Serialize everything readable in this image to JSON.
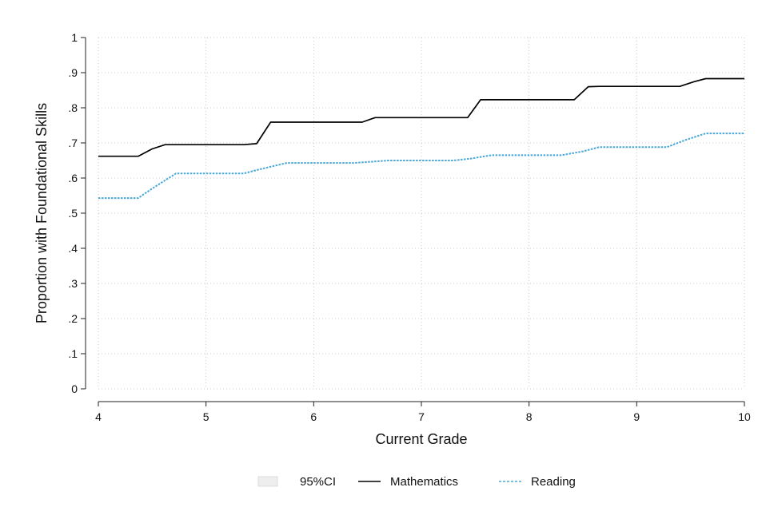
{
  "chart_data": {
    "type": "line",
    "title": "",
    "xlabel": "Current Grade",
    "ylabel": "Proportion with Foundational Skills",
    "xlim": [
      4,
      10
    ],
    "ylim": [
      0,
      1
    ],
    "x_ticks": [
      "4",
      "5",
      "6",
      "7",
      "8",
      "9",
      "10"
    ],
    "y_ticks": [
      "0",
      ".1",
      ".2",
      ".3",
      ".4",
      ".5",
      ".6",
      ".7",
      ".8",
      ".9",
      "1"
    ],
    "grid": true,
    "legend_position": "bottom",
    "legend": [
      "95%CI",
      "Mathematics",
      "Reading"
    ],
    "colors": {
      "mathematics": "#000000",
      "reading": "#4aa8d8",
      "ci": "#eeeeee"
    },
    "series": [
      {
        "name": "Mathematics",
        "style": "solid",
        "x": [
          4.0,
          4.37,
          4.5,
          4.62,
          5.35,
          5.47,
          5.6,
          6.45,
          6.57,
          7.43,
          7.55,
          8.42,
          8.55,
          8.65,
          9.4,
          9.53,
          9.64,
          10.0
        ],
        "y": [
          0.662,
          0.662,
          0.683,
          0.695,
          0.695,
          0.698,
          0.759,
          0.759,
          0.772,
          0.772,
          0.823,
          0.823,
          0.86,
          0.861,
          0.861,
          0.874,
          0.883,
          0.883
        ]
      },
      {
        "name": "Reading",
        "style": "dotted",
        "x": [
          4.0,
          4.37,
          4.5,
          4.72,
          5.35,
          5.5,
          5.75,
          6.37,
          6.7,
          7.3,
          7.45,
          7.65,
          8.3,
          8.5,
          8.65,
          9.28,
          9.45,
          9.64,
          10.0
        ],
        "y": [
          0.543,
          0.543,
          0.57,
          0.613,
          0.613,
          0.625,
          0.643,
          0.643,
          0.65,
          0.65,
          0.655,
          0.665,
          0.665,
          0.676,
          0.688,
          0.688,
          0.708,
          0.727,
          0.727
        ]
      }
    ]
  }
}
